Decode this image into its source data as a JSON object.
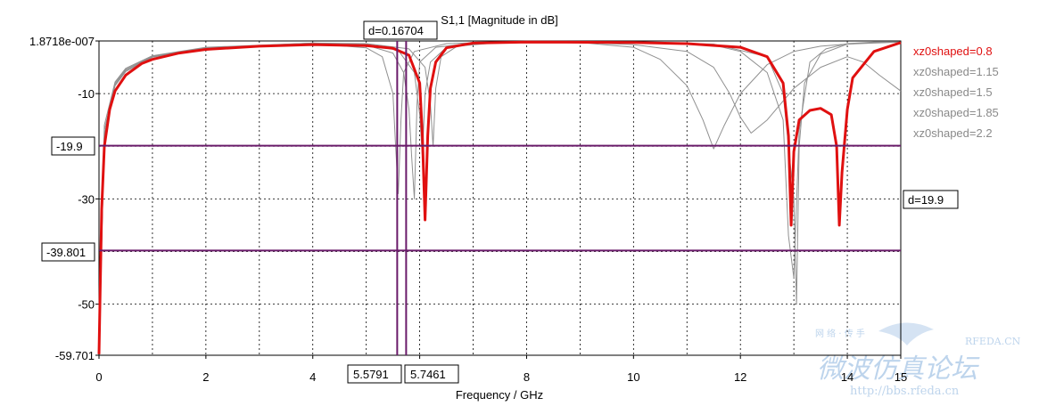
{
  "chart_data": {
    "type": "line",
    "title": "S1,1 [Magnitude in dB]",
    "xlabel": "Frequency / GHz",
    "ylabel": "",
    "xlim": [
      0,
      15
    ],
    "ylim": [
      -59.701,
      1.8718e-07
    ],
    "x_ticks": [
      "0",
      "2",
      "4",
      "6",
      "8",
      "10",
      "12",
      "14",
      "15"
    ],
    "y_ticks": [
      {
        "value": 1.8718e-07,
        "label": "1.8718e-007"
      },
      {
        "value": -10,
        "label": "-10"
      },
      {
        "value": -30,
        "label": "-30"
      },
      {
        "value": -50,
        "label": "-50"
      },
      {
        "value": -59.701,
        "label": "-59.701"
      }
    ],
    "grid": true,
    "legend_position": "right",
    "series": [
      {
        "name": "xz0shaped=0.8",
        "color": "#e01010",
        "emphasis": true,
        "x": [
          0,
          0.05,
          0.1,
          0.2,
          0.3,
          0.5,
          0.8,
          1.0,
          1.5,
          2.0,
          3.0,
          4.0,
          5.0,
          5.5,
          5.8,
          6.0,
          6.05,
          6.1,
          6.15,
          6.2,
          6.3,
          6.5,
          7.0,
          8.0,
          10.0,
          11.0,
          12.0,
          12.5,
          12.8,
          12.9,
          12.95,
          13.0,
          13.1,
          13.3,
          13.5,
          13.7,
          13.8,
          13.85,
          13.9,
          14.0,
          14.1,
          14.5,
          15.0
        ],
        "y": [
          -59.5,
          -32,
          -20,
          -13,
          -9.5,
          -6.5,
          -4.3,
          -3.5,
          -2.3,
          -1.6,
          -1.0,
          -0.7,
          -0.9,
          -1.4,
          -2.7,
          -8,
          -18,
          -34,
          -18,
          -9,
          -4,
          -1.3,
          -0.4,
          -0.2,
          -0.3,
          -0.5,
          -1.2,
          -3,
          -8,
          -18,
          -35,
          -21,
          -15,
          -13.2,
          -12.8,
          -14,
          -20,
          -35,
          -25,
          -13,
          -7,
          -2.0,
          -0.3
        ]
      },
      {
        "name": "xz0shaped=1.15",
        "color": "#909090",
        "x": [
          0,
          0.1,
          0.3,
          0.5,
          1.0,
          2.0,
          4.0,
          5.0,
          5.3,
          5.5,
          5.55,
          5.6,
          5.65,
          5.7,
          5.9,
          6.5,
          8.0,
          10.0,
          11.5,
          12.0,
          12.5,
          12.8,
          12.9,
          13.0,
          13.1,
          13.3,
          13.6,
          14.0,
          14.5,
          15.0
        ],
        "y": [
          -59,
          -18,
          -8.5,
          -5.8,
          -3.1,
          -1.5,
          -0.5,
          -1.3,
          -3,
          -10,
          -20,
          -29,
          -15,
          -6,
          -2,
          -0.5,
          -0.1,
          -0.2,
          -0.8,
          -2,
          -6,
          -15,
          -37,
          -45,
          -17,
          -4,
          -1.5,
          -0.5,
          -0.2,
          -0.2
        ]
      },
      {
        "name": "xz0shaped=1.5",
        "color": "#909090",
        "x": [
          0,
          0.1,
          0.3,
          0.5,
          1.0,
          2.0,
          4.0,
          5.0,
          5.5,
          5.7,
          5.8,
          5.85,
          5.9,
          5.95,
          6.0,
          6.3,
          7.0,
          8.0,
          10.0,
          11.5,
          12.5,
          12.8,
          13.0,
          13.05,
          13.1,
          13.2,
          13.5,
          14.0,
          15.0
        ],
        "y": [
          -59,
          -18,
          -8.3,
          -5.6,
          -3.0,
          -1.4,
          -0.4,
          -0.8,
          -2.3,
          -6,
          -13,
          -22,
          -30,
          -12,
          -4,
          -1.2,
          -0.4,
          -0.1,
          -0.2,
          -0.6,
          -3,
          -10,
          -30,
          -50,
          -20,
          -8,
          -2.5,
          -0.6,
          -0.2
        ]
      },
      {
        "name": "xz0shaped=1.85",
        "color": "#909090",
        "x": [
          0,
          0.1,
          0.3,
          0.5,
          1.0,
          2.0,
          4.0,
          5.0,
          5.6,
          5.9,
          6.0,
          6.05,
          6.1,
          6.2,
          6.5,
          7.0,
          8.0,
          9.0,
          10.0,
          10.5,
          11.0,
          11.3,
          11.5,
          11.7,
          12.0,
          12.5,
          13.0,
          13.5,
          14.0,
          14.5,
          15.0
        ],
        "y": [
          -59,
          -17,
          -8.0,
          -5.4,
          -2.9,
          -1.3,
          -0.4,
          -0.6,
          -1.8,
          -6,
          -14,
          -22,
          -10,
          -4,
          -1.2,
          -0.5,
          -0.2,
          -0.3,
          -1.2,
          -3.5,
          -8.5,
          -15,
          -20.5,
          -16,
          -10,
          -4.5,
          -2,
          -1,
          -0.6,
          -0.3,
          -0.2
        ]
      },
      {
        "name": "xz0shaped=2.2",
        "color": "#909090",
        "x": [
          0,
          0.1,
          0.3,
          0.5,
          1.0,
          2.0,
          4.0,
          5.0,
          5.8,
          6.1,
          6.2,
          6.25,
          6.3,
          6.4,
          6.7,
          7.5,
          8.0,
          9.0,
          10.0,
          11.0,
          11.5,
          11.8,
          12.0,
          12.2,
          12.5,
          13.0,
          13.5,
          14.0,
          14.3,
          14.6,
          15.0
        ],
        "y": [
          -59,
          -16,
          -7.8,
          -5.2,
          -2.8,
          -1.2,
          -0.4,
          -0.5,
          -1.5,
          -5,
          -12,
          -20,
          -9,
          -3,
          -1,
          -0.3,
          -0.2,
          -0.3,
          -0.7,
          -2,
          -5,
          -10,
          -14.5,
          -17.5,
          -15,
          -9,
          -5,
          -3,
          -4,
          -6.5,
          -9.5
        ]
      }
    ],
    "markers": {
      "horizontal": [
        {
          "label": "-19.9",
          "value": -19.9
        },
        {
          "label": "-39.801",
          "value": -39.801
        }
      ],
      "vertical": [
        {
          "label": "5.5791",
          "value": 5.5791
        },
        {
          "label": "5.7461",
          "value": 5.7461
        }
      ],
      "delta_x_label": "d=0.16704",
      "delta_y_label": "d=19.9",
      "color": "#6a1b6a"
    }
  },
  "watermark": {
    "site": "RFEDA.CN",
    "title": "微波仿真论坛",
    "url": "http://bbs.rfeda.cn",
    "sub": "网 络 · 传 手"
  }
}
